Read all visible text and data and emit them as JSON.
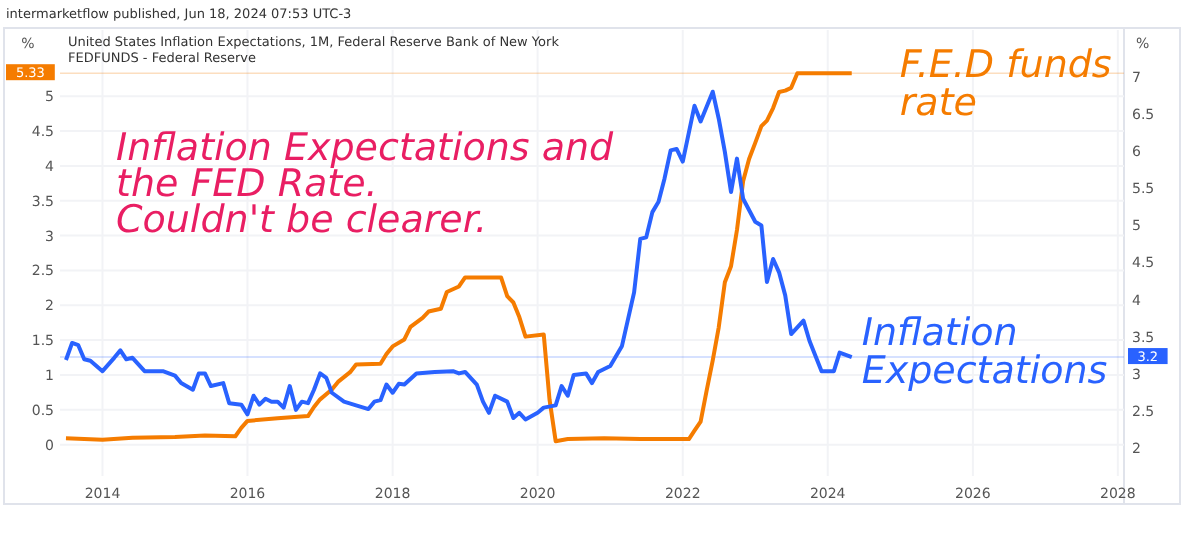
{
  "chart_data": {
    "type": "line",
    "title": "Inflation Expectations and\nthe FED Rate.\nCouldn't be clearer.",
    "ylabel": "%",
    "y2label": "%",
    "annotations": [
      "intermarketflow published, Jun 18, 2024 07:53 UTC-3",
      "United States Inflation Expectations, 1M, Federal Reserve Bank of New York",
      "FEDFUNDS - Federal Reserve"
    ],
    "xlim": [
      "2013-06",
      "2028-02"
    ],
    "xticks": [
      "2014",
      "2016",
      "2018",
      "2020",
      "2022",
      "2024",
      "2026",
      "2028"
    ],
    "ylim": [
      -0.45,
      5.95
    ],
    "yticks": [
      0,
      0.5,
      1,
      1.5,
      2,
      2.5,
      3,
      3.5,
      4,
      4.5,
      5
    ],
    "y2lim": [
      1.6,
      7.6
    ],
    "y2ticks": [
      2,
      2.5,
      3,
      3.5,
      4,
      4.5,
      5,
      5.5,
      6,
      6.5,
      7
    ],
    "grid": true,
    "legend": "right",
    "ref_lines": [
      {
        "axis": "y",
        "value": 5.33,
        "label": "5.33",
        "color": "#f57c00"
      },
      {
        "axis": "y2",
        "value": 3.2,
        "label": "3.2",
        "color": "#2962ff"
      }
    ],
    "series": [
      {
        "name": "F.E.D funds rate",
        "color": "#f57c00",
        "axis": "y",
        "x": [
          "2013-07",
          "2014-01",
          "2014-06",
          "2015-01",
          "2015-06",
          "2015-11",
          "2015-12",
          "2016-01",
          "2016-06",
          "2016-11",
          "2016-12",
          "2017-01",
          "2017-03",
          "2017-04",
          "2017-06",
          "2017-07",
          "2017-11",
          "2017-12",
          "2018-01",
          "2018-03",
          "2018-04",
          "2018-06",
          "2018-07",
          "2018-09",
          "2018-10",
          "2018-12",
          "2019-01",
          "2019-07",
          "2019-08",
          "2019-09",
          "2019-10",
          "2019-11",
          "2020-02",
          "2020-03",
          "2020-04",
          "2020-06",
          "2020-12",
          "2021-06",
          "2021-12",
          "2022-02",
          "2022-03",
          "2022-04",
          "2022-05",
          "2022-06",
          "2022-07",
          "2022-08",
          "2022-09",
          "2022-10",
          "2022-11",
          "2022-12",
          "2023-01",
          "2023-02",
          "2023-03",
          "2023-04",
          "2023-05",
          "2023-06",
          "2023-07",
          "2023-08",
          "2024-05"
        ],
        "values": [
          0.09,
          0.07,
          0.1,
          0.11,
          0.13,
          0.12,
          0.24,
          0.34,
          0.38,
          0.41,
          0.54,
          0.65,
          0.79,
          0.9,
          1.04,
          1.15,
          1.16,
          1.3,
          1.41,
          1.51,
          1.69,
          1.82,
          1.91,
          1.95,
          2.19,
          2.27,
          2.4,
          2.4,
          2.13,
          2.04,
          1.83,
          1.55,
          1.58,
          0.65,
          0.05,
          0.08,
          0.09,
          0.08,
          0.08,
          0.08,
          0.2,
          0.33,
          0.77,
          1.21,
          1.68,
          2.33,
          2.56,
          3.08,
          3.78,
          4.1,
          4.33,
          4.57,
          4.65,
          4.83,
          5.06,
          5.08,
          5.12,
          5.33,
          5.33
        ]
      },
      {
        "name": "Inflation Expectations",
        "color": "#2962ff",
        "axis": "y2",
        "x": [
          "2013-07",
          "2013-08",
          "2013-09",
          "2013-10",
          "2013-11",
          "2014-01",
          "2014-03",
          "2014-04",
          "2014-05",
          "2014-06",
          "2014-08",
          "2014-11",
          "2015-01",
          "2015-02",
          "2015-04",
          "2015-05",
          "2015-06",
          "2015-07",
          "2015-09",
          "2015-10",
          "2015-12",
          "2016-01",
          "2016-02",
          "2016-03",
          "2016-04",
          "2016-05",
          "2016-06",
          "2016-07",
          "2016-08",
          "2016-09",
          "2016-10",
          "2016-11",
          "2016-12",
          "2017-01",
          "2017-02",
          "2017-03",
          "2017-05",
          "2017-07",
          "2017-09",
          "2017-10",
          "2017-11",
          "2017-12",
          "2018-01",
          "2018-02",
          "2018-03",
          "2018-05",
          "2018-08",
          "2018-11",
          "2018-12",
          "2019-01",
          "2019-03",
          "2019-04",
          "2019-05",
          "2019-06",
          "2019-08",
          "2019-09",
          "2019-10",
          "2019-11",
          "2020-01",
          "2020-02",
          "2020-04",
          "2020-05",
          "2020-06",
          "2020-07",
          "2020-09",
          "2020-10",
          "2020-11",
          "2021-01",
          "2021-03",
          "2021-05",
          "2021-06",
          "2021-07",
          "2021-08",
          "2021-09",
          "2021-10",
          "2021-11",
          "2021-12",
          "2022-01",
          "2022-03",
          "2022-04",
          "2022-06",
          "2022-07",
          "2022-08",
          "2022-09",
          "2022-10",
          "2022-11",
          "2023-01",
          "2023-02",
          "2023-03",
          "2023-04",
          "2023-05",
          "2023-06",
          "2023-07",
          "2023-09",
          "2023-10",
          "2023-12",
          "2024-02",
          "2024-03",
          "2024-05"
        ],
        "values": [
          3.16,
          3.39,
          3.36,
          3.17,
          3.15,
          3.01,
          3.19,
          3.29,
          3.17,
          3.19,
          3.01,
          3.01,
          2.95,
          2.85,
          2.76,
          2.98,
          2.98,
          2.81,
          2.85,
          2.58,
          2.56,
          2.43,
          2.68,
          2.56,
          2.64,
          2.6,
          2.6,
          2.52,
          2.81,
          2.49,
          2.6,
          2.58,
          2.76,
          2.98,
          2.92,
          2.72,
          2.6,
          2.55,
          2.5,
          2.6,
          2.62,
          2.83,
          2.72,
          2.84,
          2.83,
          2.98,
          3.0,
          3.01,
          2.98,
          3.0,
          2.83,
          2.6,
          2.45,
          2.68,
          2.6,
          2.38,
          2.45,
          2.36,
          2.45,
          2.52,
          2.55,
          2.81,
          2.68,
          2.96,
          2.98,
          2.85,
          3.0,
          3.08,
          3.35,
          4.07,
          4.79,
          4.81,
          5.15,
          5.29,
          5.6,
          5.98,
          6.0,
          5.83,
          6.58,
          6.37,
          6.77,
          6.41,
          5.96,
          5.42,
          5.87,
          5.33,
          5.02,
          4.97,
          4.21,
          4.52,
          4.34,
          4.03,
          3.51,
          3.69,
          3.42,
          3.01,
          3.01,
          3.26,
          3.2
        ]
      }
    ]
  }
}
